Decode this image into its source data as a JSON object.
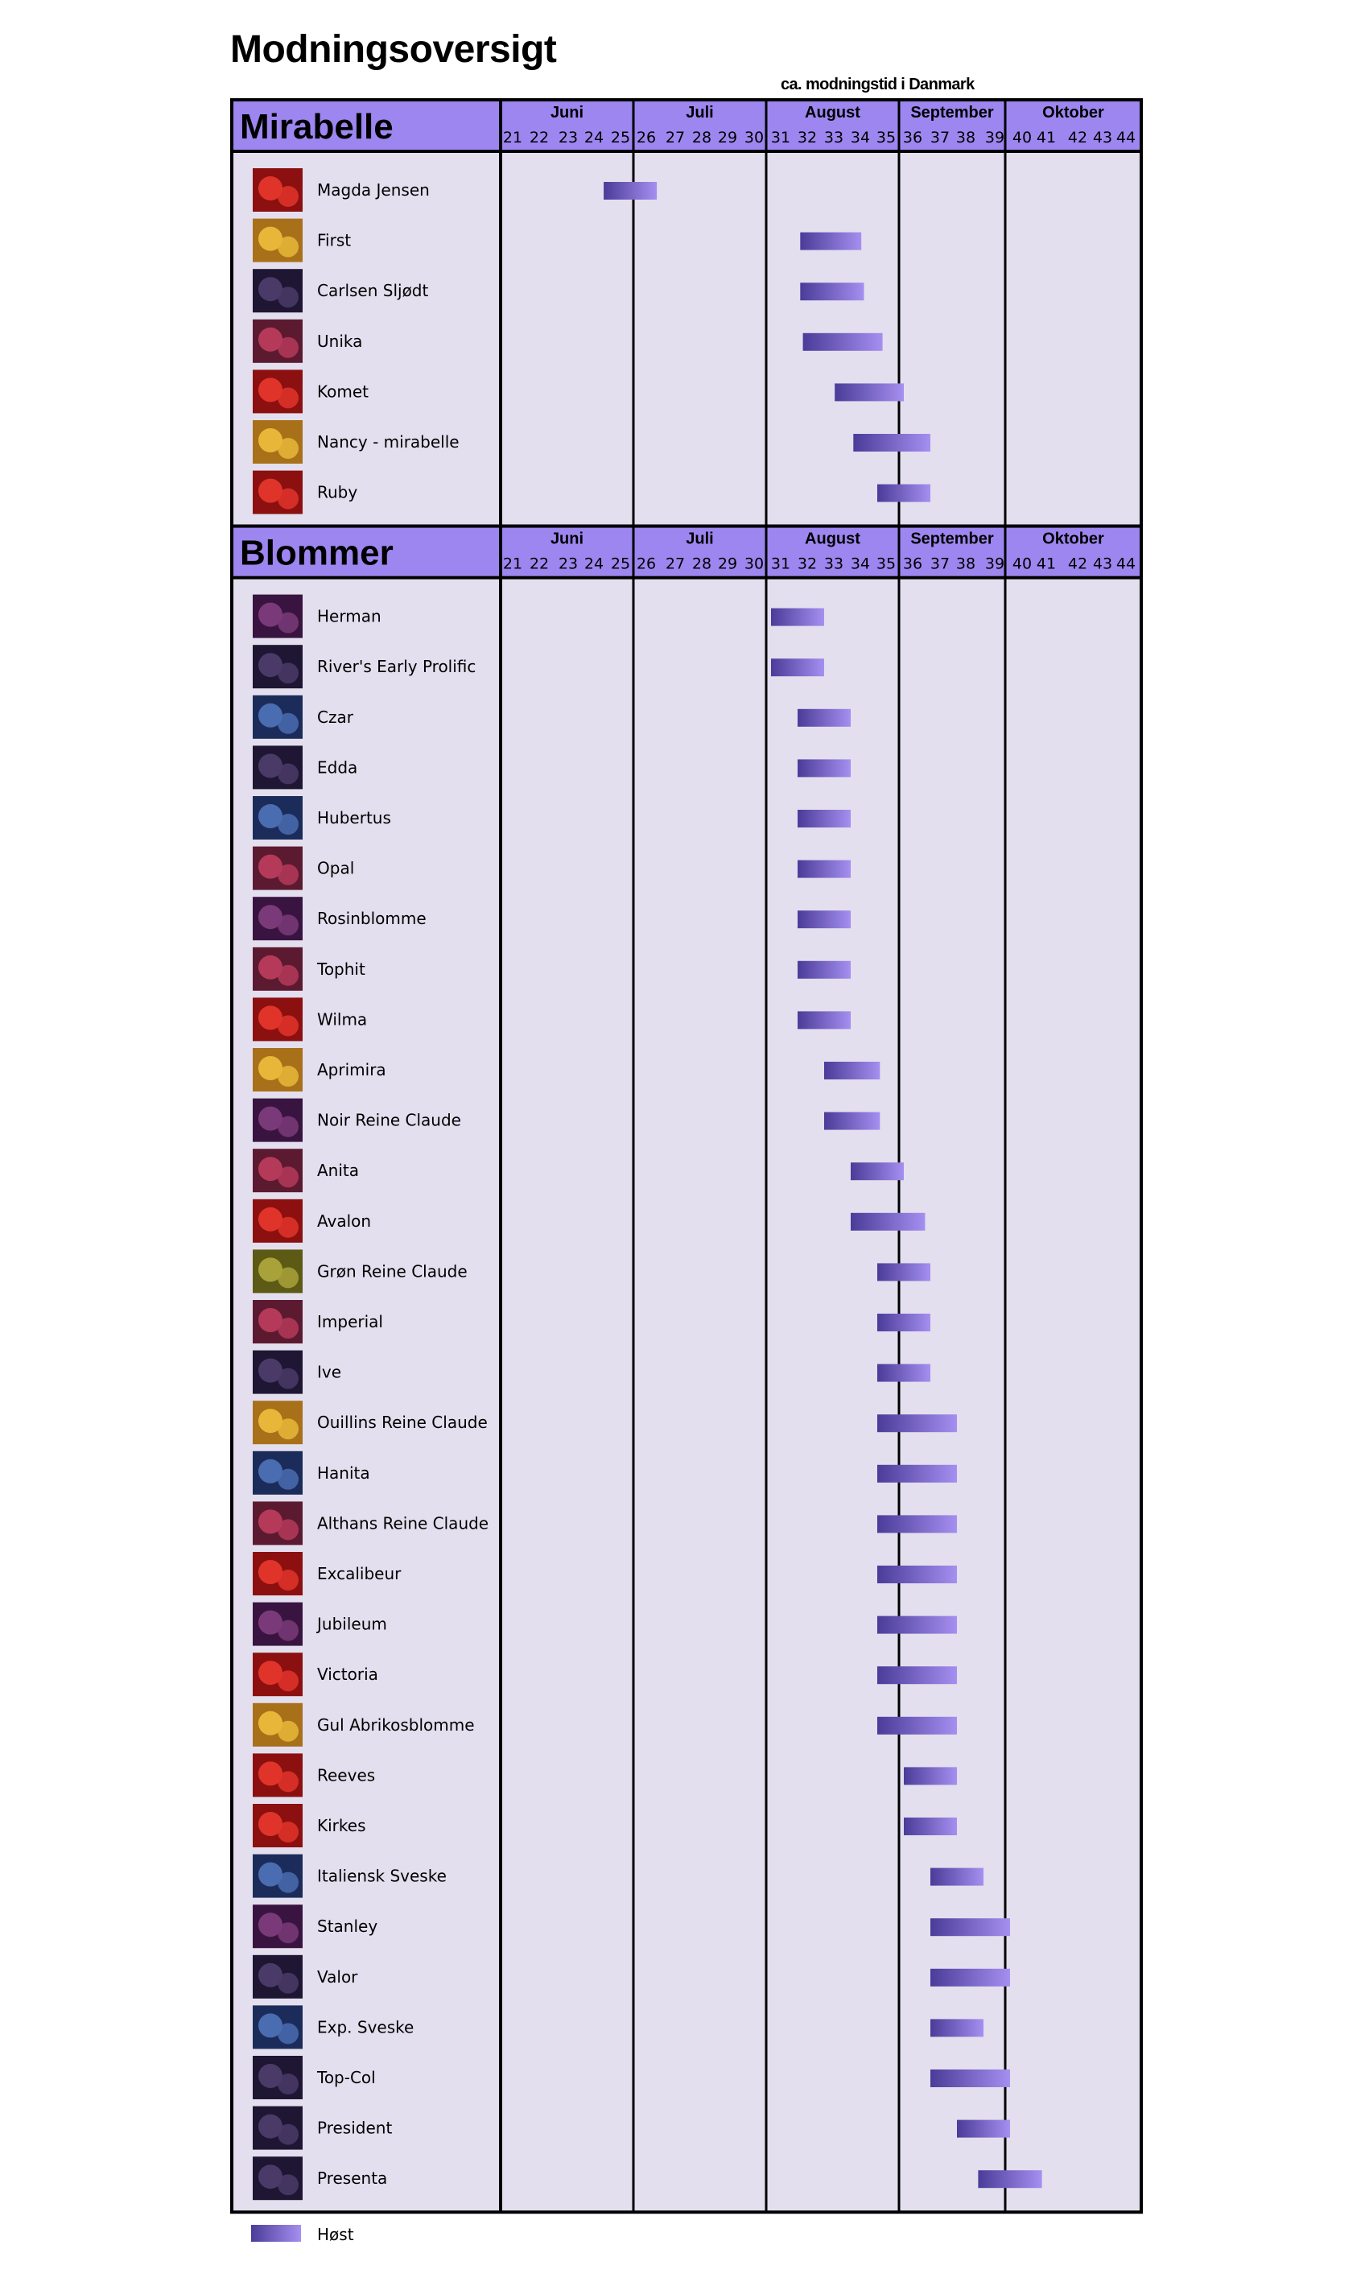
{
  "title": "Modningsoversigt",
  "subtitle": "ca. modningstid i Danmark",
  "colors": {
    "header_fill": "#9d86ef",
    "panel_fill": "#e3dfee",
    "bar_start": "#4b3c99",
    "bar_end": "#a58ff0",
    "border": "#000000"
  },
  "legend": {
    "label": "Høst"
  },
  "chart_data": {
    "type": "gantt",
    "x_unit": "uge",
    "xlim": [
      21,
      44
    ],
    "months": [
      {
        "name": "Juni",
        "weeks": [
          21,
          22,
          23,
          24,
          25
        ]
      },
      {
        "name": "Juli",
        "weeks": [
          26,
          27,
          28,
          29,
          30
        ]
      },
      {
        "name": "August",
        "weeks": [
          31,
          32,
          33,
          34,
          35
        ]
      },
      {
        "name": "September",
        "weeks": [
          36,
          37,
          38,
          39
        ]
      },
      {
        "name": "Oktober",
        "weeks": [
          40,
          41,
          42,
          43,
          44
        ]
      }
    ],
    "sections": [
      {
        "title": "Mirabelle",
        "varieties": [
          {
            "name": "Magda Jensen",
            "start": 24.7,
            "end": 26.7,
            "icon": "red-fruit"
          },
          {
            "name": "First",
            "start": 32.1,
            "end": 34.4,
            "icon": "yellow-fruit"
          },
          {
            "name": "Carlsen Sljødt",
            "start": 32.1,
            "end": 34.5,
            "icon": "dark-plum"
          },
          {
            "name": "Unika",
            "start": 32.2,
            "end": 35.2,
            "icon": "red-plum"
          },
          {
            "name": "Komet",
            "start": 33.4,
            "end": 36.0,
            "icon": "red-fruit"
          },
          {
            "name": "Nancy - mirabelle",
            "start": 34.1,
            "end": 37.0,
            "icon": "yellow-fruit"
          },
          {
            "name": "Ruby",
            "start": 35.0,
            "end": 37.0,
            "icon": "red-fruit"
          }
        ]
      },
      {
        "title": "Blommer",
        "varieties": [
          {
            "name": "Herman",
            "start": 31.0,
            "end": 33.0,
            "icon": "purple-plum"
          },
          {
            "name": "River's Early Prolific",
            "start": 31.0,
            "end": 33.0,
            "icon": "dark-plum"
          },
          {
            "name": "Czar",
            "start": 32.0,
            "end": 34.0,
            "icon": "blue-plum"
          },
          {
            "name": "Edda",
            "start": 32.0,
            "end": 34.0,
            "icon": "dark-plum"
          },
          {
            "name": "Hubertus",
            "start": 32.0,
            "end": 34.0,
            "icon": "blue-plum"
          },
          {
            "name": "Opal",
            "start": 32.0,
            "end": 34.0,
            "icon": "red-plum"
          },
          {
            "name": "Rosinblomme",
            "start": 32.0,
            "end": 34.0,
            "icon": "purple-plum"
          },
          {
            "name": "Tophit",
            "start": 32.0,
            "end": 34.0,
            "icon": "red-plum"
          },
          {
            "name": "Wilma",
            "start": 32.0,
            "end": 34.0,
            "icon": "red-fruit"
          },
          {
            "name": "Aprimira",
            "start": 33.0,
            "end": 35.1,
            "icon": "yellow-fruit"
          },
          {
            "name": "Noir Reine Claude",
            "start": 33.0,
            "end": 35.1,
            "icon": "purple-plum"
          },
          {
            "name": "Anita",
            "start": 34.0,
            "end": 36.0,
            "icon": "red-plum"
          },
          {
            "name": "Avalon",
            "start": 34.0,
            "end": 36.8,
            "icon": "red-fruit"
          },
          {
            "name": "Grøn Reine Claude",
            "start": 35.0,
            "end": 37.0,
            "icon": "green-fruit"
          },
          {
            "name": "Imperial",
            "start": 35.0,
            "end": 37.0,
            "icon": "red-plum"
          },
          {
            "name": "Ive",
            "start": 35.0,
            "end": 37.0,
            "icon": "dark-plum"
          },
          {
            "name": "Ouillins Reine Claude",
            "start": 35.0,
            "end": 38.0,
            "icon": "yellow-fruit"
          },
          {
            "name": "Hanita",
            "start": 35.0,
            "end": 38.0,
            "icon": "blue-plum"
          },
          {
            "name": "Althans Reine Claude",
            "start": 35.0,
            "end": 38.0,
            "icon": "red-plum"
          },
          {
            "name": "Excalibeur",
            "start": 35.0,
            "end": 38.0,
            "icon": "red-fruit"
          },
          {
            "name": "Jubileum",
            "start": 35.0,
            "end": 38.0,
            "icon": "purple-plum"
          },
          {
            "name": "Victoria",
            "start": 35.0,
            "end": 38.0,
            "icon": "red-fruit"
          },
          {
            "name": "Gul Abrikosblomme",
            "start": 35.0,
            "end": 38.0,
            "icon": "yellow-fruit"
          },
          {
            "name": "Reeves",
            "start": 36.0,
            "end": 38.0,
            "icon": "red-fruit"
          },
          {
            "name": "Kirkes",
            "start": 36.0,
            "end": 38.0,
            "icon": "red-fruit"
          },
          {
            "name": "Italiensk Sveske",
            "start": 37.0,
            "end": 39.0,
            "icon": "blue-plum"
          },
          {
            "name": "Stanley",
            "start": 37.0,
            "end": 40.0,
            "icon": "purple-plum"
          },
          {
            "name": "Valor",
            "start": 37.0,
            "end": 40.0,
            "icon": "dark-plum"
          },
          {
            "name": "Exp. Sveske",
            "start": 37.0,
            "end": 39.0,
            "icon": "blue-plum"
          },
          {
            "name": "Top-Col",
            "start": 37.0,
            "end": 40.0,
            "icon": "dark-plum"
          },
          {
            "name": "President",
            "start": 38.0,
            "end": 40.0,
            "icon": "dark-plum"
          },
          {
            "name": "Presenta",
            "start": 38.8,
            "end": 41.2,
            "icon": "dark-plum"
          }
        ]
      }
    ]
  }
}
